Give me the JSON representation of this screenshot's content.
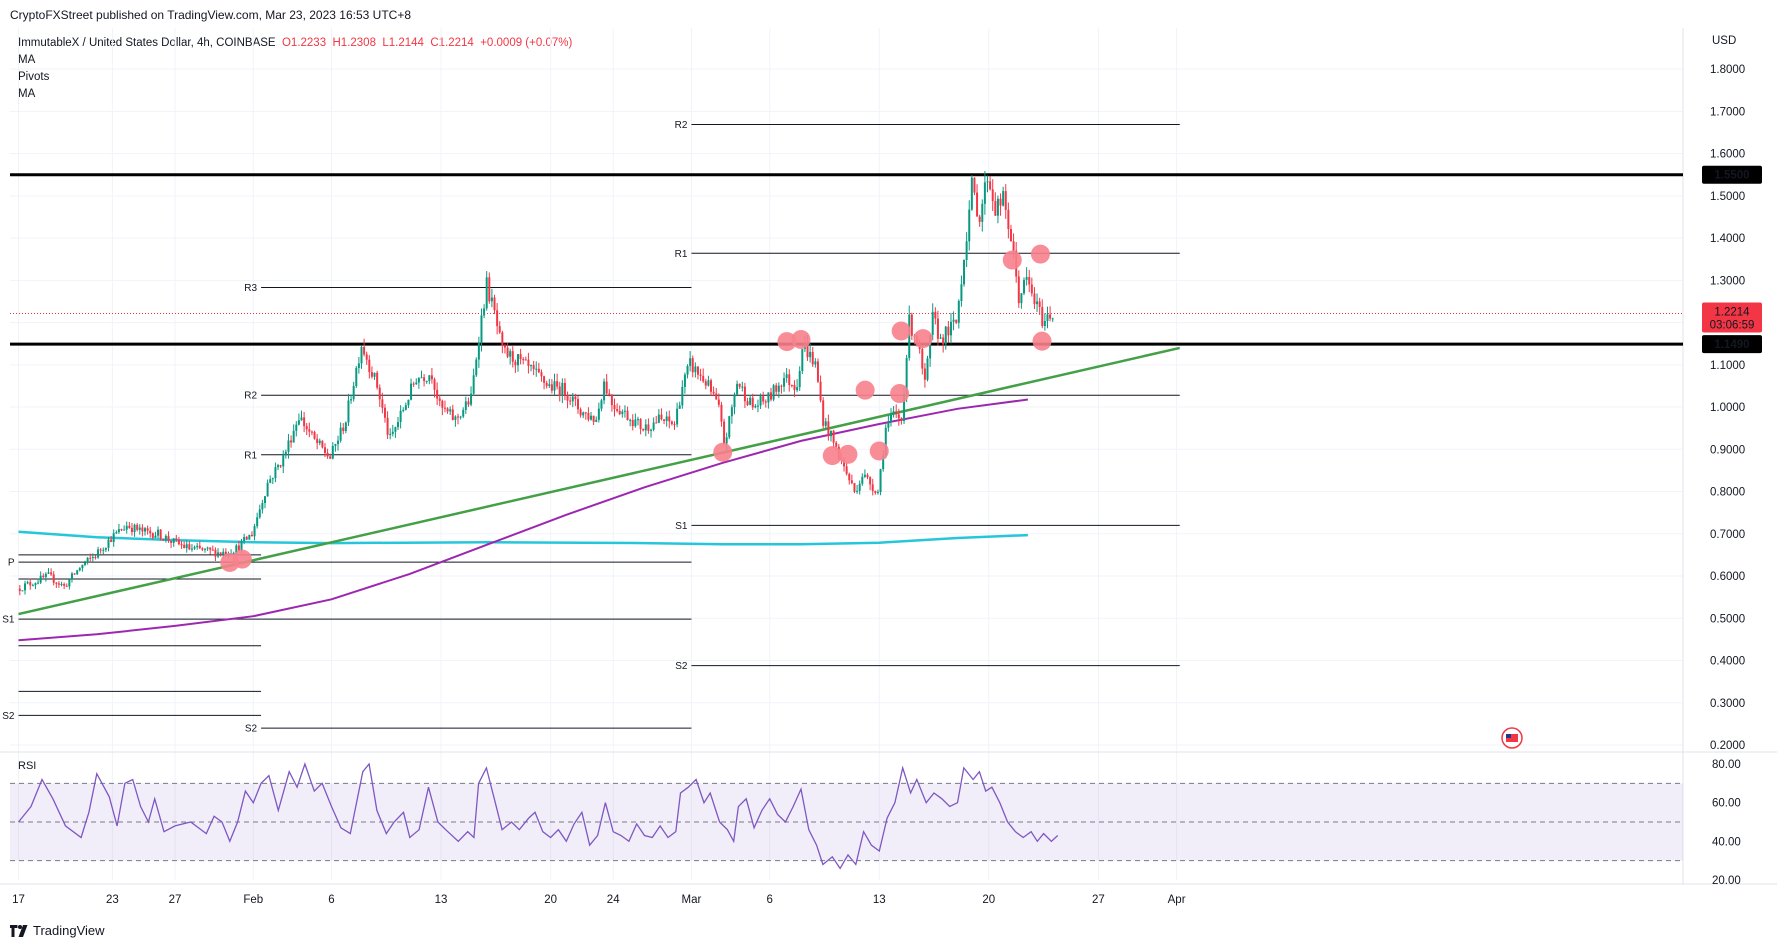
{
  "publisher": "CryptoFXStreet published on TradingView.com, Mar 23, 2023 16:53 UTC+8",
  "legend": {
    "symbol": "ImmutableX / United States Dollar, 4h, COINBASE",
    "o": "O1.2233",
    "h": "H1.2308",
    "l": "L1.2144",
    "c": "C1.2214",
    "chg": "+0.0009 (+0.07%)",
    "indicators": [
      "MA",
      "Pivots",
      "MA"
    ]
  },
  "rsi_label": "RSI",
  "footer": "TradingView",
  "colors": {
    "up": "#089981",
    "down": "#f23645",
    "trend": "#43a047",
    "ma_purple": "#9c27b0",
    "ma_cyan": "#26c6da",
    "rsi": "#7e57c2",
    "marker": "#f7818c"
  },
  "chart_data": {
    "type": "candlestick",
    "currency": "USD",
    "ylim": [
      0.2,
      1.85
    ],
    "y_ticks": [
      "1.8000",
      "1.7000",
      "1.6000",
      "1.5000",
      "1.4000",
      "1.3000",
      "1.2000",
      "1.1000",
      "1.0000",
      "0.9000",
      "0.8000",
      "0.7000",
      "0.6000",
      "0.5000",
      "0.4000",
      "0.3000",
      "0.2000"
    ],
    "x_ticks": [
      {
        "label": "17",
        "day": 0
      },
      {
        "label": "23",
        "day": 6
      },
      {
        "label": "27",
        "day": 10
      },
      {
        "label": "Feb",
        "day": 15
      },
      {
        "label": "6",
        "day": 20
      },
      {
        "label": "13",
        "day": 27
      },
      {
        "label": "20",
        "day": 34
      },
      {
        "label": "24",
        "day": 38
      },
      {
        "label": "Mar",
        "day": 43
      },
      {
        "label": "6",
        "day": 48
      },
      {
        "label": "13",
        "day": 55
      },
      {
        "label": "20",
        "day": 62
      },
      {
        "label": "27",
        "day": 69
      },
      {
        "label": "Apr",
        "day": 74
      }
    ],
    "last_price": {
      "value": 1.2214,
      "label": "1.2214",
      "countdown": "03:06:59"
    },
    "horizontal_levels": [
      {
        "value": 1.55,
        "label": "1.5500"
      },
      {
        "value": 1.149,
        "label": "1.1490"
      }
    ],
    "pivots": [
      {
        "period": 1,
        "start_day": 0,
        "end_day": 15.5,
        "levels": [
          {
            "name": "",
            "value": 0.65
          },
          {
            "name": "P",
            "value": 0.633
          },
          {
            "name": "",
            "value": 0.593
          },
          {
            "name": "S1",
            "value": 0.498
          },
          {
            "name": "",
            "value": 0.435
          },
          {
            "name": "",
            "value": 0.327
          },
          {
            "name": "S2",
            "value": 0.27
          }
        ]
      },
      {
        "period": 2,
        "start_day": 15.5,
        "end_day": 43,
        "levels": [
          {
            "name": "R3",
            "value": 1.283
          },
          {
            "name": "R2",
            "value": 1.028
          },
          {
            "name": "R1",
            "value": 0.887
          },
          {
            "name": "",
            "value": 0.633
          },
          {
            "name": "",
            "value": 0.498
          },
          {
            "name": "S2",
            "value": 0.24
          }
        ]
      },
      {
        "period": 3,
        "start_day": 43,
        "end_day": 74.2,
        "levels": [
          {
            "name": "R2",
            "value": 1.669
          },
          {
            "name": "R1",
            "value": 1.364
          },
          {
            "name": "",
            "value": 1.028
          },
          {
            "name": "S1",
            "value": 0.72
          },
          {
            "name": "S2",
            "value": 0.388
          }
        ]
      }
    ],
    "trendline": {
      "points": [
        {
          "day": 0,
          "value": 0.51
        },
        {
          "day": 74.2,
          "value": 1.14
        }
      ]
    },
    "ma_long": [
      [
        0,
        0.448
      ],
      [
        5,
        0.462
      ],
      [
        10,
        0.482
      ],
      [
        15,
        0.505
      ],
      [
        20,
        0.545
      ],
      [
        25,
        0.605
      ],
      [
        30,
        0.675
      ],
      [
        35,
        0.745
      ],
      [
        40,
        0.81
      ],
      [
        45,
        0.868
      ],
      [
        50,
        0.92
      ],
      [
        55,
        0.96
      ],
      [
        60,
        0.996
      ],
      [
        64.5,
        1.018
      ]
    ],
    "ma_cyan": [
      [
        0,
        0.705
      ],
      [
        5,
        0.692
      ],
      [
        10,
        0.685
      ],
      [
        15,
        0.68
      ],
      [
        20,
        0.678
      ],
      [
        30,
        0.68
      ],
      [
        40,
        0.678
      ],
      [
        45,
        0.675
      ],
      [
        50,
        0.675
      ],
      [
        55,
        0.679
      ],
      [
        60,
        0.69
      ],
      [
        64.5,
        0.697
      ]
    ],
    "price_path": [
      [
        0,
        0.57
      ],
      [
        2,
        0.6
      ],
      [
        3,
        0.575
      ],
      [
        4,
        0.62
      ],
      [
        5,
        0.65
      ],
      [
        6,
        0.69
      ],
      [
        7,
        0.72
      ],
      [
        8,
        0.705
      ],
      [
        9,
        0.7
      ],
      [
        10,
        0.68
      ],
      [
        11,
        0.665
      ],
      [
        12,
        0.66
      ],
      [
        13,
        0.655
      ],
      [
        14,
        0.665
      ],
      [
        15,
        0.7
      ],
      [
        16,
        0.82
      ],
      [
        17,
        0.88
      ],
      [
        18,
        0.98
      ],
      [
        19,
        0.92
      ],
      [
        20,
        0.88
      ],
      [
        21,
        0.97
      ],
      [
        22,
        1.15
      ],
      [
        23,
        1.05
      ],
      [
        23.8,
        0.92
      ],
      [
        24.5,
        0.98
      ],
      [
        25.5,
        1.07
      ],
      [
        26.5,
        1.08
      ],
      [
        27,
        1.0
      ],
      [
        28,
        0.97
      ],
      [
        29,
        1.02
      ],
      [
        29.5,
        1.17
      ],
      [
        30,
        1.29
      ],
      [
        30.5,
        1.22
      ],
      [
        31,
        1.13
      ],
      [
        32,
        1.11
      ],
      [
        33,
        1.08
      ],
      [
        34,
        1.05
      ],
      [
        35,
        1.04
      ],
      [
        36,
        0.99
      ],
      [
        37,
        0.97
      ],
      [
        37.5,
        1.06
      ],
      [
        38,
        1.01
      ],
      [
        39,
        0.98
      ],
      [
        40,
        0.95
      ],
      [
        41,
        0.97
      ],
      [
        42,
        0.96
      ],
      [
        42.5,
        1.05
      ],
      [
        43,
        1.1
      ],
      [
        44,
        1.06
      ],
      [
        44.8,
        1.0
      ],
      [
        45.2,
        0.91
      ],
      [
        46,
        1.06
      ],
      [
        47,
        1.0
      ],
      [
        48,
        1.02
      ],
      [
        49,
        1.07
      ],
      [
        49.8,
        1.05
      ],
      [
        50.2,
        1.15
      ],
      [
        51,
        1.1
      ],
      [
        51.5,
        0.97
      ],
      [
        52,
        0.93
      ],
      [
        52.8,
        0.86
      ],
      [
        53.5,
        0.8
      ],
      [
        54,
        0.84
      ],
      [
        55,
        0.8
      ],
      [
        55.5,
        0.95
      ],
      [
        56,
        0.98
      ],
      [
        56.5,
        0.97
      ],
      [
        57,
        1.2
      ],
      [
        57.5,
        1.16
      ],
      [
        58,
        1.05
      ],
      [
        58.5,
        1.21
      ],
      [
        59,
        1.16
      ],
      [
        60,
        1.2
      ],
      [
        60.6,
        1.39
      ],
      [
        61,
        1.52
      ],
      [
        61.5,
        1.45
      ],
      [
        62,
        1.55
      ],
      [
        62.5,
        1.47
      ],
      [
        63,
        1.49
      ],
      [
        63.5,
        1.4
      ],
      [
        64,
        1.26
      ],
      [
        64.5,
        1.3
      ],
      [
        65,
        1.25
      ],
      [
        65.6,
        1.2
      ],
      [
        66,
        1.22
      ]
    ],
    "markers": [
      {
        "day": 13.5,
        "value": 0.632
      },
      {
        "day": 14.3,
        "value": 0.64
      },
      {
        "day": 45.0,
        "value": 0.893
      },
      {
        "day": 49.1,
        "value": 1.155
      },
      {
        "day": 50.0,
        "value": 1.16
      },
      {
        "day": 52.0,
        "value": 0.885
      },
      {
        "day": 53.0,
        "value": 0.888
      },
      {
        "day": 54.1,
        "value": 1.04
      },
      {
        "day": 55.0,
        "value": 0.896
      },
      {
        "day": 56.3,
        "value": 1.032
      },
      {
        "day": 56.4,
        "value": 1.18
      },
      {
        "day": 57.8,
        "value": 1.162
      },
      {
        "day": 63.5,
        "value": 1.348
      },
      {
        "day": 65.3,
        "value": 1.362
      },
      {
        "day": 65.4,
        "value": 1.156
      }
    ],
    "rsi": {
      "ylim": [
        20,
        80
      ],
      "y_ticks": [
        "80.00",
        "60.00",
        "40.00",
        "20.00"
      ],
      "upper": 70,
      "middle": 50,
      "lower": 30,
      "path": [
        [
          0,
          50
        ],
        [
          0.8,
          58
        ],
        [
          1.5,
          72
        ],
        [
          2.2,
          62
        ],
        [
          3,
          48
        ],
        [
          4,
          42
        ],
        [
          4.5,
          55
        ],
        [
          5,
          75
        ],
        [
          5.8,
          63
        ],
        [
          6.3,
          48
        ],
        [
          6.8,
          70
        ],
        [
          7.3,
          72
        ],
        [
          7.8,
          58
        ],
        [
          8.3,
          50
        ],
        [
          8.7,
          62
        ],
        [
          9.3,
          45
        ],
        [
          10,
          48
        ],
        [
          11,
          50
        ],
        [
          12,
          44
        ],
        [
          12.5,
          53
        ],
        [
          13,
          50
        ],
        [
          13.5,
          40
        ],
        [
          14,
          50
        ],
        [
          14.5,
          66
        ],
        [
          15,
          60
        ],
        [
          15.5,
          70
        ],
        [
          16,
          74
        ],
        [
          16.6,
          56
        ],
        [
          17.3,
          76
        ],
        [
          17.8,
          68
        ],
        [
          18.3,
          80
        ],
        [
          18.9,
          66
        ],
        [
          19.4,
          70
        ],
        [
          20,
          58
        ],
        [
          20.6,
          47
        ],
        [
          21.2,
          44
        ],
        [
          22,
          76
        ],
        [
          22.4,
          80
        ],
        [
          22.9,
          56
        ],
        [
          23.5,
          44
        ],
        [
          24,
          50
        ],
        [
          24.6,
          55
        ],
        [
          25,
          42
        ],
        [
          25.6,
          46
        ],
        [
          26.2,
          68
        ],
        [
          26.8,
          50
        ],
        [
          27.3,
          46
        ],
        [
          28.1,
          40
        ],
        [
          28.7,
          45
        ],
        [
          29.1,
          42
        ],
        [
          29.4,
          70
        ],
        [
          29.9,
          78
        ],
        [
          30.4,
          62
        ],
        [
          30.9,
          46
        ],
        [
          31.5,
          50
        ],
        [
          32,
          46
        ],
        [
          32.6,
          52
        ],
        [
          33,
          55
        ],
        [
          33.5,
          45
        ],
        [
          34,
          42
        ],
        [
          34.5,
          46
        ],
        [
          35,
          40
        ],
        [
          35.5,
          49
        ],
        [
          36,
          55
        ],
        [
          36.5,
          38
        ],
        [
          37,
          43
        ],
        [
          37.5,
          60
        ],
        [
          38,
          45
        ],
        [
          38.5,
          43
        ],
        [
          39,
          40
        ],
        [
          39.5,
          49
        ],
        [
          40,
          43
        ],
        [
          40.5,
          42
        ],
        [
          41,
          48
        ],
        [
          41.5,
          42
        ],
        [
          42,
          45
        ],
        [
          42.3,
          65
        ],
        [
          42.8,
          68
        ],
        [
          43.3,
          72
        ],
        [
          43.8,
          60
        ],
        [
          44.2,
          65
        ],
        [
          44.8,
          50
        ],
        [
          45.3,
          46
        ],
        [
          45.7,
          40
        ],
        [
          46,
          58
        ],
        [
          46.5,
          62
        ],
        [
          47,
          47
        ],
        [
          47.5,
          56
        ],
        [
          48,
          62
        ],
        [
          48.5,
          54
        ],
        [
          49,
          50
        ],
        [
          49.5,
          58
        ],
        [
          50,
          67
        ],
        [
          50.5,
          46
        ],
        [
          51,
          38
        ],
        [
          51.4,
          28
        ],
        [
          52,
          32
        ],
        [
          52.5,
          26
        ],
        [
          53,
          33
        ],
        [
          53.5,
          28
        ],
        [
          54,
          45
        ],
        [
          54.5,
          38
        ],
        [
          55,
          35
        ],
        [
          55.5,
          52
        ],
        [
          56,
          60
        ],
        [
          56.5,
          78
        ],
        [
          57,
          65
        ],
        [
          57.4,
          72
        ],
        [
          58,
          60
        ],
        [
          58.5,
          65
        ],
        [
          59,
          62
        ],
        [
          59.5,
          58
        ],
        [
          60,
          60
        ],
        [
          60.4,
          78
        ],
        [
          61,
          72
        ],
        [
          61.4,
          76
        ],
        [
          61.8,
          66
        ],
        [
          62.2,
          68
        ],
        [
          62.7,
          60
        ],
        [
          63.2,
          50
        ],
        [
          63.7,
          45
        ],
        [
          64.2,
          42
        ],
        [
          64.7,
          45
        ],
        [
          65.1,
          40
        ],
        [
          65.5,
          44
        ],
        [
          66,
          40
        ],
        [
          66.4,
          43
        ]
      ]
    }
  }
}
